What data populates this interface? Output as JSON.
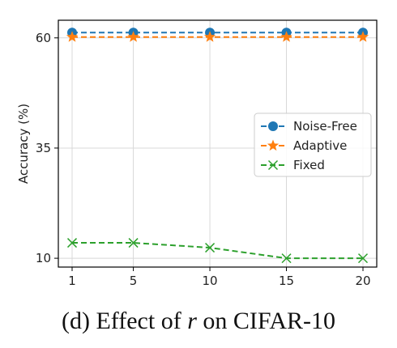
{
  "caption": {
    "before": "(d) Effect of ",
    "variable": "r",
    "after": " on CIFAR-10"
  },
  "chart_data": {
    "type": "line",
    "x": [
      1,
      5,
      10,
      15,
      20
    ],
    "x_ticks": [
      "1",
      "5",
      "10",
      "15",
      "20"
    ],
    "y_ticks": [
      10,
      35,
      60
    ],
    "ylim": [
      8,
      64
    ],
    "xlabel": "",
    "ylabel": "Accuracy (%)",
    "grid": true,
    "legend_position": "center-right",
    "series": [
      {
        "name": "Noise-Free",
        "color": "#1f77b4",
        "marker": "circle",
        "values": [
          61.2,
          61.2,
          61.2,
          61.2,
          61.2
        ]
      },
      {
        "name": "Adaptive",
        "color": "#ff7f0e",
        "marker": "star",
        "values": [
          60.2,
          60.2,
          60.2,
          60.2,
          60.2
        ]
      },
      {
        "name": "Fixed",
        "color": "#2ca02c",
        "marker": "x",
        "values": [
          13.5,
          13.5,
          12.4,
          10.0,
          10.0
        ]
      }
    ]
  }
}
